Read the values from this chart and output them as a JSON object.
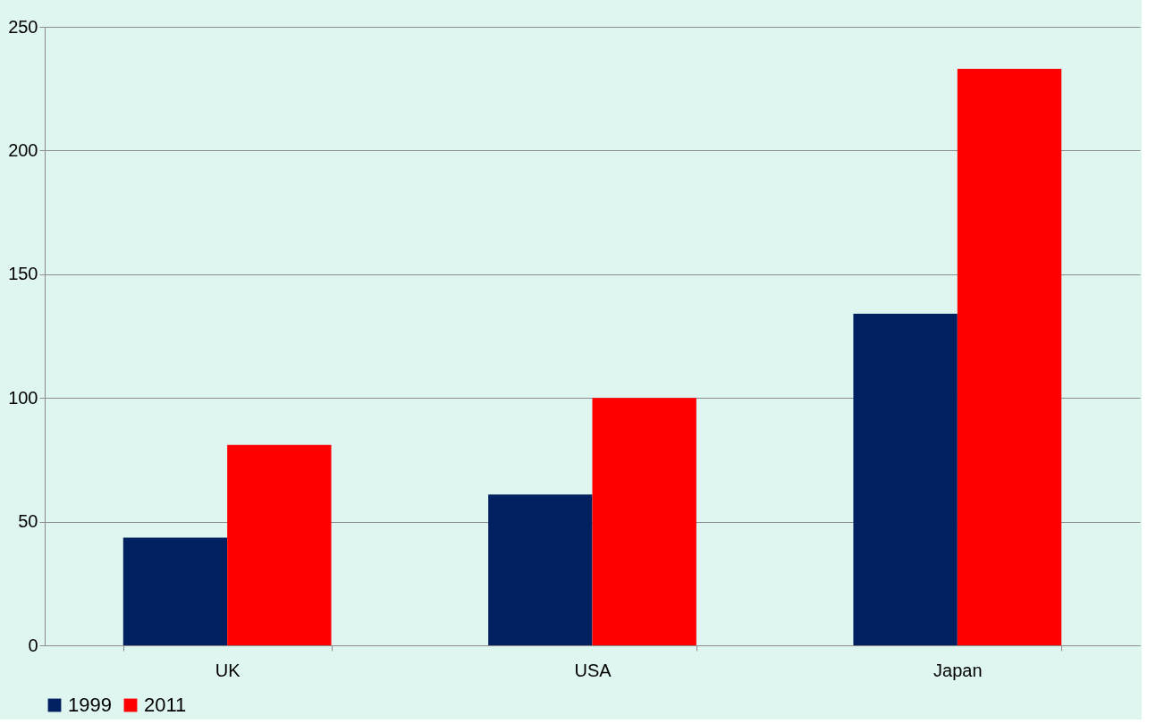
{
  "chart_data": {
    "type": "bar",
    "categories": [
      "UK",
      "USA",
      "Japan"
    ],
    "series": [
      {
        "name": "1999",
        "color": "#002060",
        "values": [
          43.5,
          61,
          134
        ]
      },
      {
        "name": "2011",
        "color": "#ff0000",
        "values": [
          81,
          100,
          233
        ]
      }
    ],
    "ylim": [
      0,
      250
    ],
    "yticks": [
      0,
      50,
      100,
      150,
      200,
      250
    ],
    "grid": "y",
    "legend": "bottom"
  }
}
